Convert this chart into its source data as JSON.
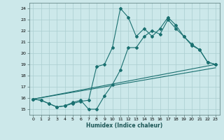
{
  "xlabel": "Humidex (Indice chaleur)",
  "background_color": "#cce8ea",
  "grid_color": "#aacdd0",
  "line_color": "#1a7070",
  "xlim": [
    -0.5,
    23.5
  ],
  "ylim": [
    14.5,
    24.5
  ],
  "yticks": [
    15,
    16,
    17,
    18,
    19,
    20,
    21,
    22,
    23,
    24
  ],
  "xticks": [
    0,
    1,
    2,
    3,
    4,
    5,
    6,
    7,
    8,
    9,
    10,
    11,
    12,
    13,
    14,
    15,
    16,
    17,
    18,
    19,
    20,
    21,
    22,
    23
  ],
  "series_smooth1": {
    "x": [
      0,
      23
    ],
    "y": [
      15.9,
      18.7
    ]
  },
  "series_smooth2": {
    "x": [
      0,
      23
    ],
    "y": [
      15.9,
      19.0
    ]
  },
  "series_jagged1": {
    "x": [
      0,
      1,
      2,
      3,
      4,
      5,
      6,
      7,
      8,
      9,
      10,
      11,
      12,
      13,
      14,
      15,
      16,
      17,
      18,
      19,
      20,
      21,
      22,
      23
    ],
    "y": [
      15.9,
      15.8,
      15.5,
      15.2,
      15.3,
      15.6,
      15.8,
      15.0,
      15.0,
      16.2,
      17.2,
      18.5,
      20.5,
      20.5,
      21.5,
      22.0,
      21.7,
      23.0,
      22.2,
      21.5,
      20.7,
      20.3,
      19.2,
      19.0
    ]
  },
  "series_jagged2": {
    "x": [
      0,
      1,
      2,
      3,
      4,
      5,
      6,
      7,
      8,
      9,
      10,
      11,
      12,
      13,
      14,
      15,
      16,
      17,
      18,
      19,
      20,
      21,
      22,
      23
    ],
    "y": [
      15.9,
      15.8,
      15.5,
      15.2,
      15.3,
      15.5,
      15.7,
      15.8,
      18.8,
      19.0,
      20.5,
      24.0,
      23.2,
      21.5,
      22.2,
      21.5,
      22.2,
      23.2,
      22.5,
      21.5,
      20.8,
      20.3,
      19.2,
      19.0
    ]
  }
}
